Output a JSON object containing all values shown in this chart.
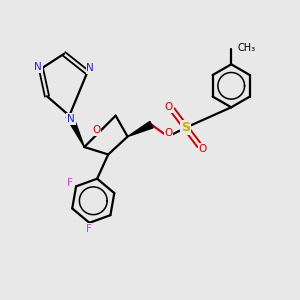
{
  "bg_color": "#e8e8e8",
  "bond_color": "#000000",
  "bond_width": 1.6,
  "N_color": "#2222cc",
  "O_color": "#cc0000",
  "F_color": "#cc44cc",
  "S_color": "#ccaa00",
  "figsize": [
    3.0,
    3.0
  ],
  "dpi": 100,
  "xlim": [
    0,
    10
  ],
  "ylim": [
    0,
    10
  ],
  "font_size": 7.5
}
